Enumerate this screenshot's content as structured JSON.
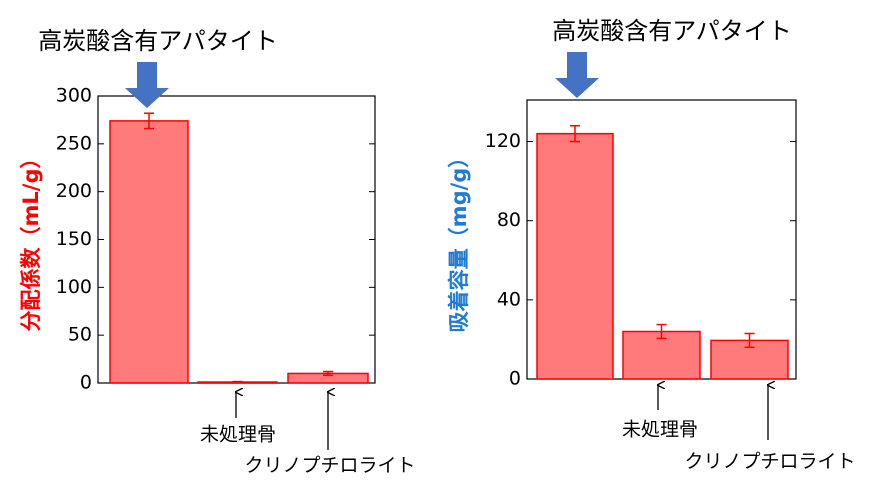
{
  "chart_data": [
    {
      "type": "bar",
      "ylabel": "分配係数（mL/g）",
      "ylabel_color": "#ff0000",
      "categories": [
        "高炭酸含有アパタイト",
        "未処理骨",
        "クリノプチロライト"
      ],
      "values": [
        274,
        1,
        10
      ],
      "errors": [
        8,
        0.5,
        2
      ],
      "color": "#ff7b7b",
      "edge_color": "#ff0000",
      "ylim": [
        0,
        300
      ],
      "yticks": [
        0,
        50,
        100,
        150,
        200,
        250,
        300
      ]
    },
    {
      "type": "bar",
      "ylabel": "吸着容量（mg/g）",
      "ylabel_color": "#1f7bd6",
      "categories": [
        "高炭酸含有アパタイト",
        "未処理骨",
        "クリノプチロライト"
      ],
      "values": [
        124,
        24,
        19.5
      ],
      "errors": [
        4,
        3.5,
        3.5
      ],
      "color": "#ff7b7b",
      "edge_color": "#ff0000",
      "ylim": [
        0,
        141
      ],
      "yticks": [
        0,
        40,
        80,
        120
      ]
    }
  ]
}
